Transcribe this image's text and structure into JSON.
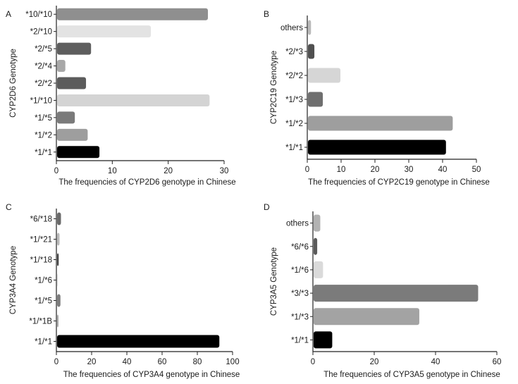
{
  "chart_data": [
    {
      "type": "bar",
      "orientation": "horizontal",
      "panel_label": "A",
      "ylabel": "CYP2D6 Genotype",
      "xlabel": "The frequencies of CYP2D6 genotype in Chinese",
      "categories": [
        "*1/*1",
        "*1/*2",
        "*1/*5",
        "*1/*10",
        "*2/*2",
        "*2/*4",
        "*2/*5",
        "*2/*10",
        "*10/*10"
      ],
      "values": [
        7.7,
        5.6,
        3.3,
        27.4,
        5.3,
        1.6,
        6.2,
        16.9,
        27.1
      ],
      "colors": [
        "#000000",
        "#9e9e9e",
        "#7a7a7a",
        "#d4d4d4",
        "#5c5c5c",
        "#a8a8a8",
        "#5e5e5e",
        "#e3e3e3",
        "#8f8f8f"
      ],
      "xlim": [
        0,
        30
      ],
      "xticks": [
        0,
        10,
        20,
        30
      ],
      "grid": false
    },
    {
      "type": "bar",
      "orientation": "horizontal",
      "panel_label": "B",
      "ylabel": "CYP2C19 Genotype",
      "xlabel": "The frequencies of CYP2C19 genotype in Chinese",
      "categories": [
        "*1/*1",
        "*1/*2",
        "*1/*3",
        "*2/*2",
        "*2/*3",
        "others"
      ],
      "values": [
        41,
        43,
        4.6,
        9.8,
        2.1,
        1.1
      ],
      "colors": [
        "#000000",
        "#9e9e9e",
        "#6f6f6f",
        "#d6d6d6",
        "#505050",
        "#b9b9b9"
      ],
      "xlim": [
        0,
        50
      ],
      "xticks": [
        0,
        10,
        20,
        30,
        40,
        50
      ],
      "grid": false
    },
    {
      "type": "bar",
      "orientation": "horizontal",
      "panel_label": "C",
      "ylabel": "CYP3A4 Genotype",
      "xlabel": "The frequencies of CYP3A4 genotype in Chinese",
      "categories": [
        "*1/*1",
        "*1/*1B",
        "*1/*5",
        "*1/*6",
        "*1/*18",
        "*1/*21",
        "*6/*18"
      ],
      "values": [
        92.5,
        1.2,
        2.3,
        0.6,
        1.3,
        1.8,
        2.6
      ],
      "colors": [
        "#000000",
        "#a8a8a8",
        "#7c7c7c",
        "#d8d8d8",
        "#404040",
        "#b9b9b9",
        "#6a6a6a"
      ],
      "xlim": [
        0,
        100
      ],
      "xticks": [
        0,
        20,
        40,
        60,
        80,
        100
      ],
      "grid": false
    },
    {
      "type": "bar",
      "orientation": "horizontal",
      "panel_label": "D",
      "ylabel": "CYP3A5 Genotype",
      "xlabel": "The frequencies of CYP3A5 genotype in Chinese",
      "categories": [
        "*1/*1",
        "*1/*3",
        "*3/*3",
        "*1/*6",
        "*6/*6",
        "others"
      ],
      "values": [
        6.3,
        34.7,
        53.9,
        3.3,
        1.4,
        2.4
      ],
      "colors": [
        "#000000",
        "#a3a3a3",
        "#7b7b7b",
        "#dadada",
        "#5a5a5a",
        "#b2b2b2"
      ],
      "xlim": [
        0,
        60
      ],
      "xticks": [
        0,
        20,
        40,
        60
      ],
      "grid": false
    }
  ]
}
